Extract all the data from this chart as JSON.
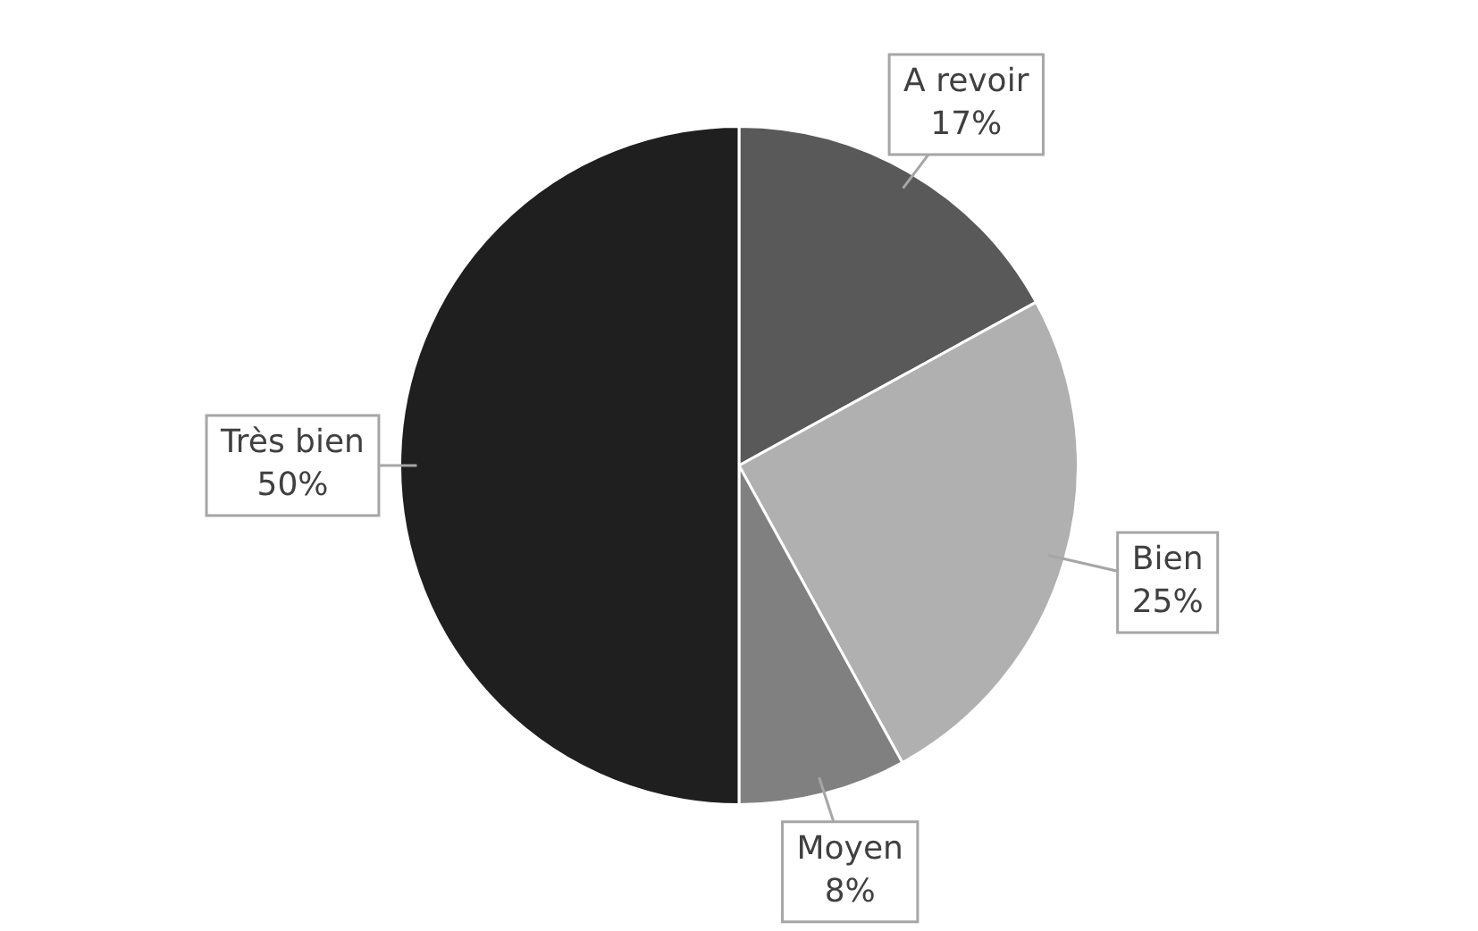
{
  "chart_data": {
    "type": "pie",
    "categories": [
      "A revoir",
      "Bien",
      "Moyen",
      "Très bien"
    ],
    "values": [
      17,
      25,
      8,
      50
    ],
    "colors": [
      "#595959",
      "#b0b0b0",
      "#808080",
      "#1f1f1f"
    ],
    "value_labels": [
      "17%",
      "25%",
      "8%",
      "50%"
    ],
    "legend": false
  }
}
